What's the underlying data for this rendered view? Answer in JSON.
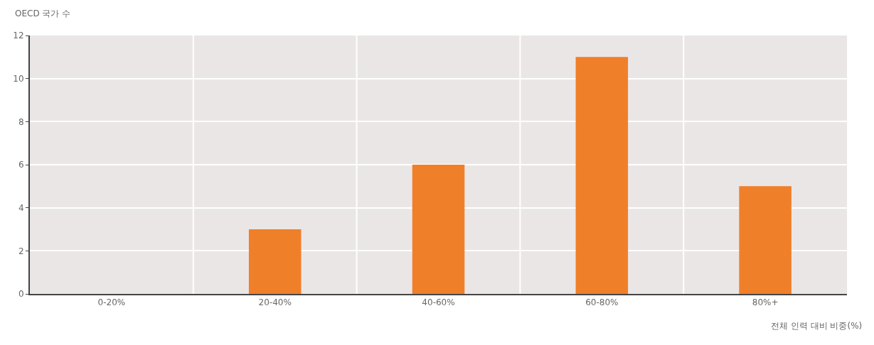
{
  "chart_data": {
    "type": "bar",
    "ylabel": "OECD 국가 수",
    "xlabel": "전체 인력 대비 비중(%)",
    "categories": [
      "0-20%",
      "20-40%",
      "40-60%",
      "60-80%",
      "80%+"
    ],
    "values": [
      0,
      3,
      6,
      11,
      5
    ],
    "color": "#f07f2a",
    "ylim": [
      0,
      12
    ],
    "yticks": [
      0,
      2,
      4,
      6,
      8,
      10,
      12
    ],
    "grid": true
  }
}
